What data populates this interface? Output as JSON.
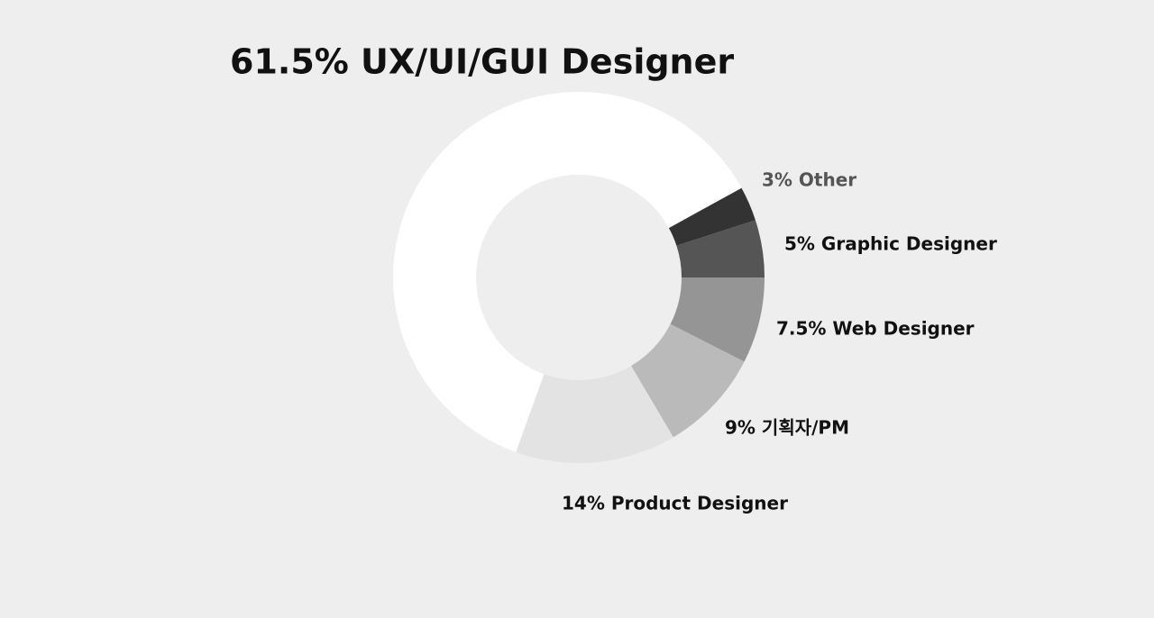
{
  "chart_data": {
    "type": "donut",
    "categories": [
      "7.5% Web Designer",
      "9% 기획자/PM",
      "14% Product Designer",
      "61.5% UX/UI/GUI Designer",
      "3% Other",
      "5% Graphic Designer"
    ],
    "values": [
      7.5,
      9,
      14,
      61.5,
      3,
      5
    ],
    "colors": [
      "#959595",
      "#bababa",
      "#e3e3e3",
      "#ffffff",
      "#333333",
      "#555555"
    ]
  }
}
